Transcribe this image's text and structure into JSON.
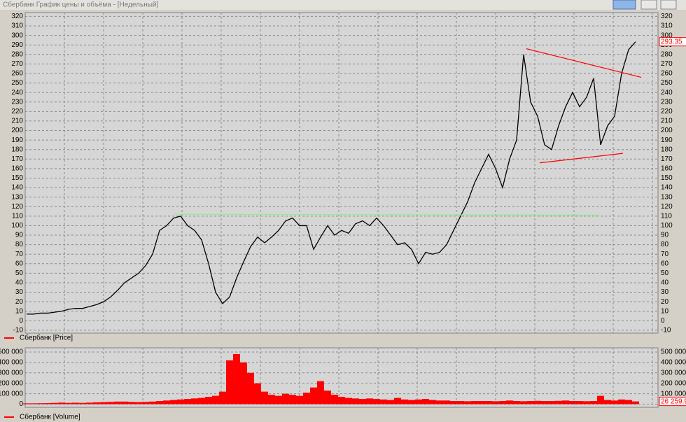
{
  "window": {
    "title": "Сбербанк График цены и объёма - [Недельный]"
  },
  "chart_data": [
    {
      "type": "line",
      "series": [
        {
          "name": "Сбербанк [Price]",
          "color": "#000000",
          "legend_color": "#ff0000",
          "values": [
            7,
            7,
            8,
            8,
            9,
            10,
            12,
            13,
            13,
            15,
            17,
            20,
            25,
            32,
            40,
            45,
            50,
            58,
            70,
            95,
            100,
            108,
            110,
            100,
            95,
            85,
            60,
            30,
            18,
            25,
            45,
            62,
            78,
            88,
            82,
            88,
            95,
            105,
            108,
            100,
            100,
            75,
            88,
            100,
            90,
            95,
            92,
            102,
            105,
            100,
            108,
            100,
            90,
            80,
            82,
            75,
            60,
            72,
            70,
            72,
            80,
            95,
            110,
            125,
            145,
            160,
            175,
            160,
            140,
            170,
            190,
            280,
            230,
            215,
            185,
            180,
            205,
            225,
            240,
            225,
            235,
            255,
            185,
            205,
            215,
            260,
            285,
            293.35
          ]
        }
      ],
      "last_value_label": "293.35",
      "xlim": [
        -0.2,
        90.2
      ],
      "ylim": [
        -13,
        324
      ],
      "yticks": [
        -10,
        0,
        10,
        20,
        30,
        40,
        50,
        60,
        70,
        80,
        90,
        100,
        110,
        120,
        130,
        140,
        150,
        160,
        170,
        180,
        190,
        200,
        210,
        220,
        230,
        240,
        250,
        260,
        270,
        280,
        290,
        300,
        310,
        320
      ],
      "grid": true,
      "trendlines": [
        {
          "color": "#ff0000",
          "x": [
            71.4,
            87.8
          ],
          "y": [
            286,
            256
          ]
        },
        {
          "color": "#ff0000",
          "x": [
            73.3,
            85.2
          ],
          "y": [
            166,
            176
          ]
        },
        {
          "color": "#90ee90",
          "x": [
            21.2,
            81.7
          ],
          "y": [
            112,
            111
          ]
        }
      ]
    },
    {
      "type": "bar",
      "series": [
        {
          "name": "Сбербанк [Volume]",
          "color": "#ff0000",
          "values": [
            8000,
            8000,
            9000,
            10000,
            12000,
            15000,
            12000,
            14000,
            12000,
            15000,
            18000,
            20000,
            22000,
            25000,
            25000,
            22000,
            20000,
            22000,
            25000,
            30000,
            35000,
            40000,
            45000,
            50000,
            55000,
            60000,
            70000,
            80000,
            120000,
            420000,
            480000,
            400000,
            300000,
            200000,
            120000,
            90000,
            80000,
            100000,
            90000,
            80000,
            110000,
            160000,
            220000,
            130000,
            90000,
            70000,
            60000,
            55000,
            50000,
            55000,
            50000,
            45000,
            40000,
            60000,
            45000,
            40000,
            45000,
            50000,
            40000,
            35000,
            35000,
            30000,
            30000,
            28000,
            30000,
            30000,
            30000,
            28000,
            30000,
            35000,
            30000,
            28000,
            30000,
            32000,
            30000,
            30000,
            32000,
            35000,
            30000,
            30000,
            28000,
            30000,
            80000,
            40000,
            35000,
            45000,
            40000,
            26259.9
          ]
        }
      ],
      "last_value_label": "26 259.9",
      "xlim": [
        -0.2,
        90.2
      ],
      "ylim": [
        -30000,
        540000
      ],
      "yticks": [
        0,
        {
          "value": 100000,
          "label": "100 000"
        },
        {
          "value": 200000,
          "label": "200 000"
        },
        {
          "value": 300000,
          "label": "300 000"
        },
        {
          "value": 400000,
          "label": "400 000"
        },
        {
          "value": 500000,
          "label": "500 000"
        }
      ],
      "grid": true
    }
  ]
}
